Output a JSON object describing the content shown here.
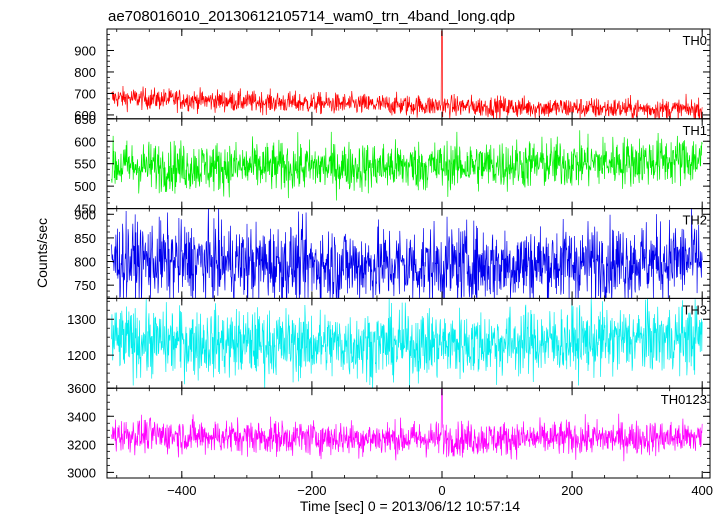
{
  "chart_data": {
    "type": "line",
    "title": "ae708016010_20130612105714_wam0_trn_4band_long.qdp",
    "xlabel": "Time [sec] 0 = 2013/06/12 10:57:14",
    "ylabel": "Counts/sec",
    "xlim": [
      -515,
      412
    ],
    "x_ticks": [
      -400,
      -200,
      0,
      200,
      400
    ],
    "x_tick_labels": [
      "−400",
      "−200",
      "0",
      "200",
      "400"
    ],
    "grid": false,
    "panels": [
      {
        "name": "TH0",
        "color": "#ff0000",
        "ylim": [
          582,
          1000
        ],
        "y_ticks": [
          600,
          700,
          800,
          900
        ],
        "y_tick_labels": [
          "600",
          "700",
          "800",
          "900"
        ],
        "start_level": 680,
        "end_level": 625,
        "noise": 25,
        "spike": 990
      },
      {
        "name": "TH1",
        "color": "#00ee00",
        "ylim": [
          450,
          650
        ],
        "y_ticks": [
          450,
          500,
          550,
          600,
          650
        ],
        "y_tick_labels": [
          "450",
          "500",
          "550",
          "600",
          "650"
        ],
        "start_level": 545,
        "end_level": 560,
        "noise": 28
      },
      {
        "name": "TH2",
        "color": "#0000ee",
        "ylim": [
          722,
          912
        ],
        "y_ticks": [
          750,
          800,
          850,
          900
        ],
        "y_tick_labels": [
          "750",
          "800",
          "850",
          "900"
        ],
        "start_level": 805,
        "end_level": 805,
        "noise": 42
      },
      {
        "name": "TH3",
        "color": "#00eeee",
        "ylim": [
          1108,
          1358
        ],
        "y_ticks": [
          1200,
          1300
        ],
        "y_tick_labels": [
          "1200",
          "1300"
        ],
        "start_level": 1240,
        "end_level": 1250,
        "noise": 48
      },
      {
        "name": "TH0123",
        "color": "#ff00ff",
        "ylim": [
          2960,
          3600
        ],
        "y_ticks": [
          3000,
          3200,
          3400,
          3600
        ],
        "y_tick_labels": [
          "3000",
          "3200",
          "3400",
          "3600"
        ],
        "start_level": 3270,
        "end_level": 3250,
        "noise": 62,
        "spike": 3600
      }
    ]
  }
}
